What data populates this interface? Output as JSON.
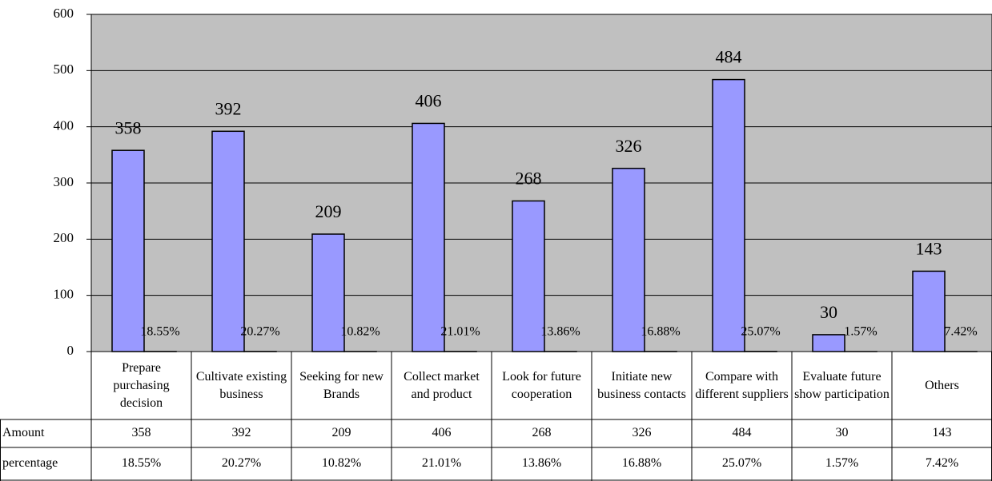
{
  "chart_data": {
    "type": "bar",
    "categories": [
      "Prepare purchasing decision",
      "Cultivate existing business",
      "Seeking for new Brands",
      "Collect market and product",
      "Look for future cooperation",
      "Initiate new business contacts",
      "Compare with different suppliers",
      "Evaluate future show participation",
      "Others"
    ],
    "series": [
      {
        "name": "Amount",
        "color": "#9999ff",
        "values": [
          358,
          392,
          209,
          406,
          268,
          326,
          484,
          30,
          143
        ]
      },
      {
        "name": "percentage",
        "color": "#993366",
        "values": [
          0.1855,
          0.2027,
          0.1082,
          0.2101,
          0.1386,
          0.1688,
          0.2507,
          0.0157,
          0.0742
        ],
        "value_labels": [
          "18.55%",
          "20.27%",
          "10.82%",
          "21.01%",
          "13.86%",
          "16.88%",
          "25.07%",
          "1.57%",
          "7.42%"
        ]
      }
    ],
    "ylim": [
      0,
      600
    ],
    "yticks": [
      0,
      100,
      200,
      300,
      400,
      500,
      600
    ],
    "grid": true,
    "plot_background": "#c0c0c0"
  }
}
